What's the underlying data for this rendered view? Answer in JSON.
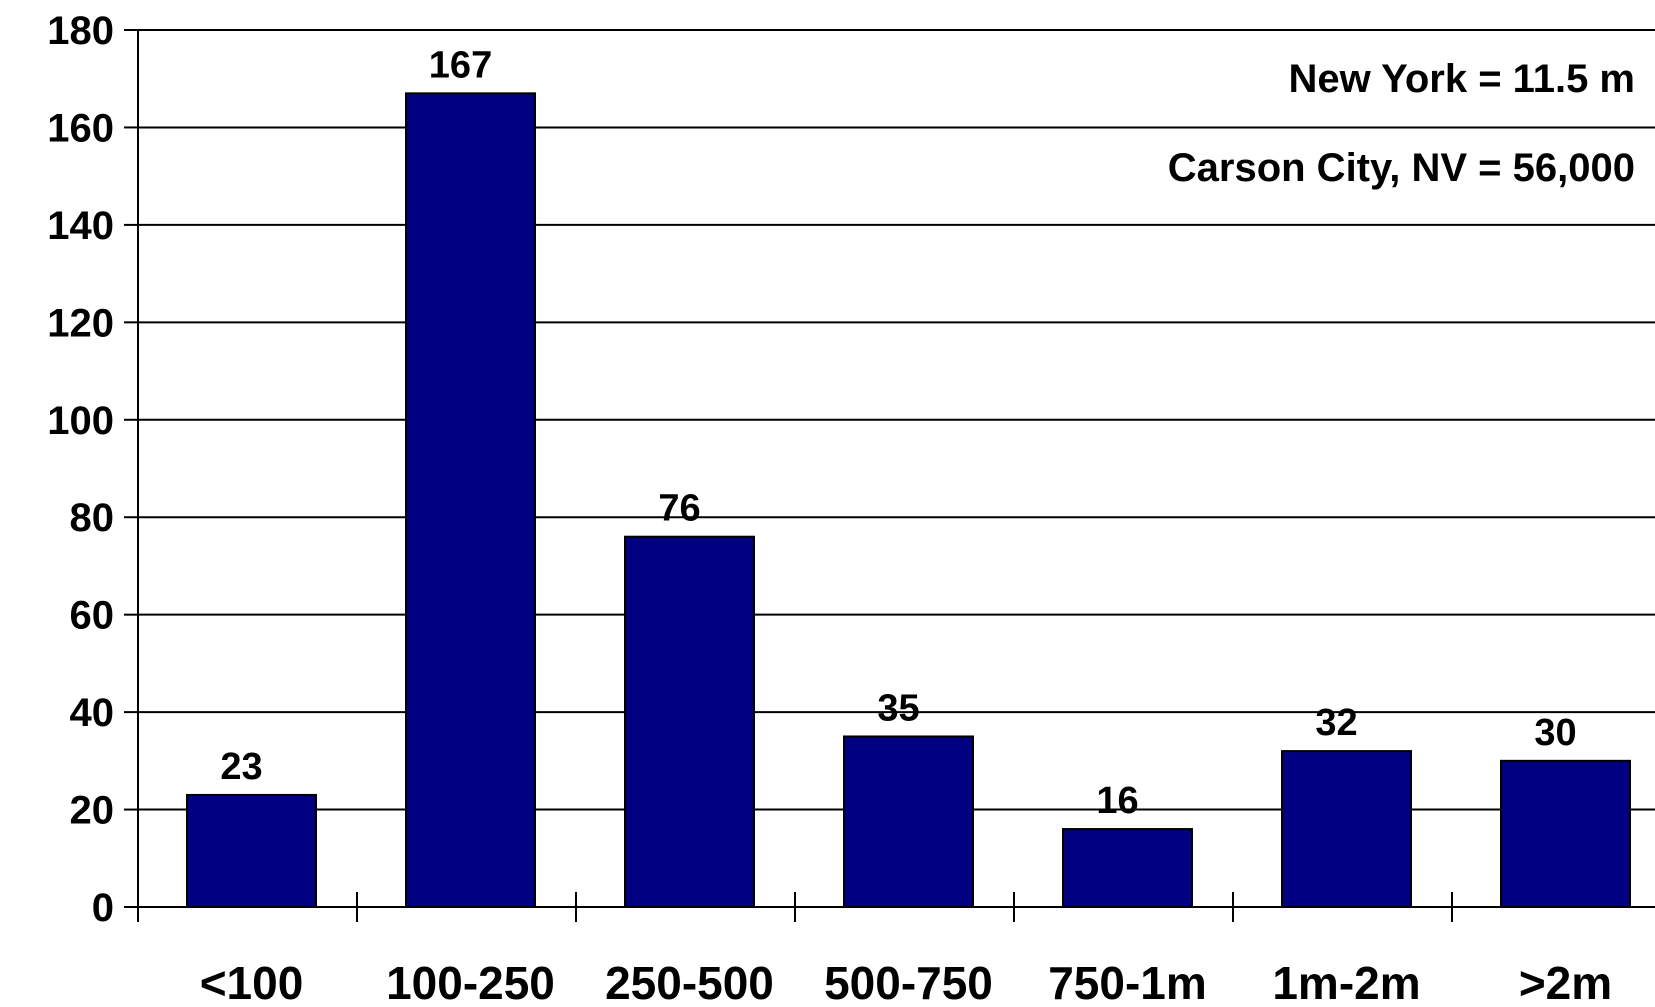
{
  "chart_data": {
    "type": "bar",
    "categories": [
      "<100",
      "100-250",
      "250-500",
      "500-750",
      "750-1m",
      "1m-2m",
      ">2m"
    ],
    "values": [
      23,
      167,
      76,
      35,
      16,
      32,
      30
    ],
    "data_labels": [
      "23",
      "167",
      "76",
      "35",
      "16",
      "32",
      "30"
    ],
    "title": "",
    "xlabel": "",
    "ylabel": "",
    "ylim": [
      0,
      180
    ],
    "yticks": [
      "0",
      "20",
      "40",
      "60",
      "80",
      "100",
      "120",
      "140",
      "160",
      "180"
    ],
    "grid": true,
    "bar_color": "#000080",
    "annotations": [
      "New York = 11.5 m",
      "Carson City, NV = 56,000"
    ]
  }
}
